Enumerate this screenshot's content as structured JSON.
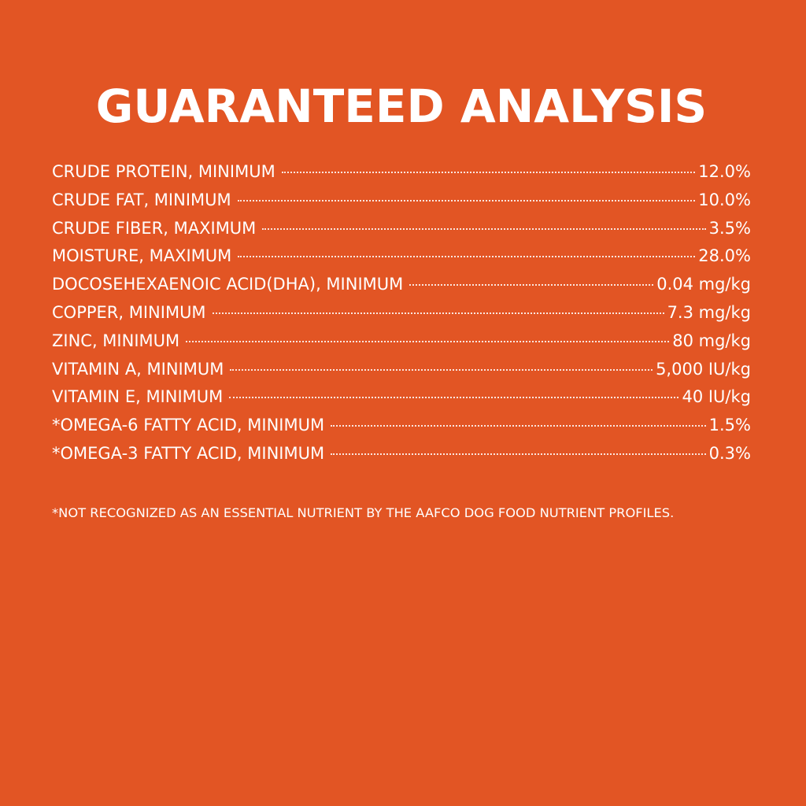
{
  "colors": {
    "background": "#E25524",
    "text": "#FFFFFF"
  },
  "title": "GUARANTEED ANALYSIS",
  "rows": [
    {
      "label": "CRUDE PROTEIN, MINIMUM",
      "value": "12.0%"
    },
    {
      "label": "CRUDE FAT, MINIMUM",
      "value": "10.0%"
    },
    {
      "label": "CRUDE FIBER, MAXIMUM",
      "value": "3.5%"
    },
    {
      "label": "MOISTURE, MAXIMUM",
      "value": "28.0%"
    },
    {
      "label": "DOCOSEHEXAENOIC ACID(DHA), MINIMUM",
      "value": "0.04 mg/kg"
    },
    {
      "label": "COPPER, MINIMUM",
      "value": "7.3 mg/kg"
    },
    {
      "label": "ZINC, MINIMUM",
      "value": "80 mg/kg"
    },
    {
      "label": "VITAMIN A, MINIMUM",
      "value": "5,000 IU/kg"
    },
    {
      "label": "VITAMIN E, MINIMUM",
      "value": "40 IU/kg"
    },
    {
      "label": "*OMEGA-6 FATTY ACID, MINIMUM",
      "value": "1.5%"
    },
    {
      "label": "*OMEGA-3 FATTY ACID, MINIMUM",
      "value": "0.3%"
    }
  ],
  "footnote": "*NOT RECOGNIZED AS AN ESSENTIAL NUTRIENT BY THE AAFCO DOG FOOD NUTRIENT PROFILES."
}
